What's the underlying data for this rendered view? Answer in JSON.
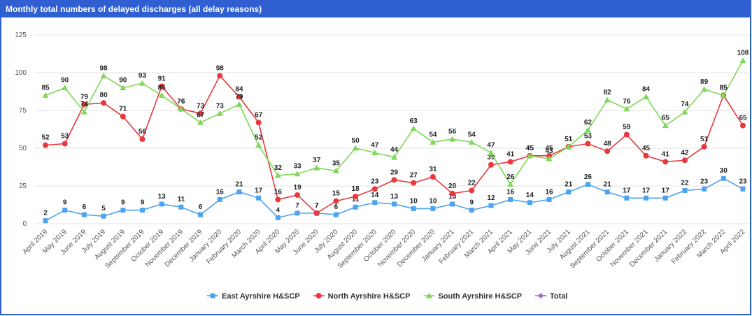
{
  "chart_data": {
    "type": "line",
    "title": "Monthly total numbers of delayed discharges (all delay reasons)",
    "categories": [
      "April 2019",
      "May 2019",
      "June 2019",
      "July 2019",
      "August 2019",
      "September 2019",
      "October 2019",
      "November 2019",
      "December 2019",
      "January 2020",
      "February 2020",
      "March 2020",
      "April 2020",
      "May 2020",
      "June 2020",
      "July 2020",
      "August 2020",
      "September 2020",
      "October 2020",
      "November 2020",
      "December 2020",
      "January 2021",
      "February 2021",
      "March 2021",
      "April 2021",
      "May 2021",
      "June 2021",
      "July 2021",
      "August 2021",
      "September 2021",
      "October 2021",
      "November 2021",
      "December 2021",
      "January 2022",
      "February 2022",
      "March 2022",
      "April 2022"
    ],
    "series": [
      {
        "name": "East Ayrshire H&SCP",
        "color": "#4da3f0",
        "marker": "square",
        "values": [
          2,
          9,
          6,
          5,
          9,
          9,
          13,
          11,
          6,
          16,
          21,
          17,
          4,
          7,
          7,
          6,
          11,
          14,
          13,
          10,
          10,
          13,
          9,
          12,
          16,
          14,
          16,
          21,
          26,
          21,
          17,
          17,
          17,
          22,
          23,
          30,
          23
        ]
      },
      {
        "name": "North Ayrshire H&SCP",
        "color": "#e8383d",
        "marker": "circle",
        "values": [
          52,
          53,
          79,
          80,
          71,
          56,
          91,
          76,
          73,
          98,
          84,
          67,
          16,
          19,
          7,
          15,
          18,
          23,
          29,
          27,
          31,
          20,
          22,
          39,
          41,
          45,
          45,
          51,
          53,
          48,
          59,
          45,
          41,
          42,
          51,
          85,
          65
        ]
      },
      {
        "name": "South Ayrshire H&SCP",
        "color": "#7ed957",
        "marker": "triangle",
        "values": [
          85,
          90,
          74,
          98,
          90,
          93,
          85,
          76,
          67,
          73,
          79,
          52,
          32,
          33,
          37,
          35,
          50,
          47,
          44,
          63,
          54,
          56,
          54,
          47,
          26,
          45,
          43,
          51,
          62,
          82,
          76,
          84,
          65,
          74,
          89,
          85,
          108
        ]
      },
      {
        "name": "Total",
        "color": "#8e6fc7",
        "marker": "diamond",
        "values": [
          null,
          null,
          null,
          null,
          null,
          null,
          null,
          null,
          null,
          null,
          null,
          null,
          null,
          null,
          null,
          null,
          null,
          null,
          null,
          null,
          null,
          null,
          null,
          null,
          null,
          null,
          null,
          null,
          null,
          null,
          null,
          null,
          null,
          null,
          null,
          null,
          null
        ]
      }
    ],
    "ylim": [
      0,
      125
    ],
    "yticks": [
      0,
      25,
      50,
      75,
      100,
      125
    ],
    "grid": true,
    "legend": "bottom"
  }
}
